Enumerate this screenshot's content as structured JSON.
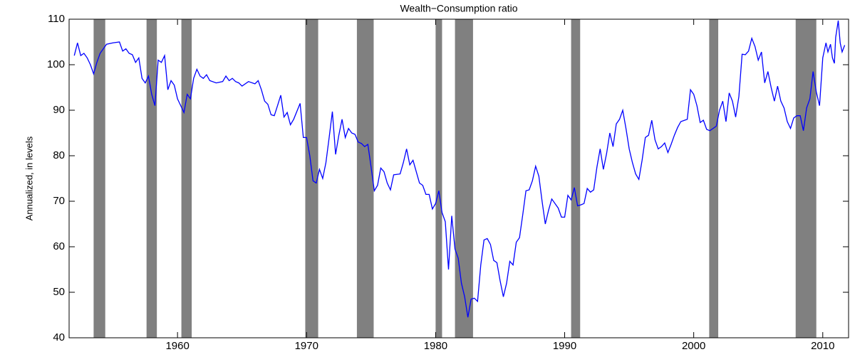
{
  "chart_data": {
    "type": "line",
    "title": "Wealth−Consumption ratio",
    "ylabel": "Annualized, in levels",
    "xlim": [
      1951.6,
      2012.0
    ],
    "ylim": [
      40,
      110
    ],
    "xticks": [
      1960,
      1970,
      1980,
      1990,
      2000,
      2010
    ],
    "yticks": [
      40,
      50,
      60,
      70,
      80,
      90,
      100,
      110
    ],
    "recession_color": "#808080",
    "recessions": [
      [
        1953.5,
        1954.4
      ],
      [
        1957.6,
        1958.4
      ],
      [
        1960.3,
        1961.1
      ],
      [
        1969.9,
        1970.9
      ],
      [
        1973.9,
        1975.2
      ],
      [
        1980.0,
        1980.5
      ],
      [
        1981.5,
        1982.9
      ],
      [
        1990.5,
        1991.2
      ],
      [
        2001.2,
        2001.9
      ],
      [
        2007.9,
        2009.5
      ]
    ],
    "series": [
      {
        "color": "#0000ff",
        "x": [
          1952.0,
          1952.25,
          1952.5,
          1952.75,
          1953.0,
          1953.25,
          1953.5,
          1953.75,
          1954.0,
          1954.5,
          1955.0,
          1955.5,
          1955.75,
          1956.0,
          1956.25,
          1956.5,
          1956.75,
          1957.0,
          1957.25,
          1957.5,
          1957.75,
          1958.0,
          1958.25,
          1958.5,
          1958.75,
          1959.0,
          1959.25,
          1959.5,
          1959.75,
          1960.0,
          1960.25,
          1960.5,
          1960.75,
          1961.0,
          1961.25,
          1961.5,
          1961.75,
          1962.0,
          1962.25,
          1962.5,
          1963.0,
          1963.5,
          1963.75,
          1964.0,
          1964.25,
          1964.5,
          1964.75,
          1965.0,
          1965.5,
          1966.0,
          1966.25,
          1966.5,
          1966.75,
          1967.0,
          1967.25,
          1967.5,
          1967.75,
          1968.0,
          1968.25,
          1968.5,
          1968.75,
          1969.0,
          1969.5,
          1969.75,
          1970.0,
          1970.25,
          1970.5,
          1970.75,
          1971.0,
          1971.25,
          1971.5,
          1971.75,
          1972.0,
          1972.25,
          1972.5,
          1972.75,
          1973.0,
          1973.25,
          1973.5,
          1973.75,
          1974.0,
          1974.25,
          1974.5,
          1974.75,
          1975.0,
          1975.25,
          1975.5,
          1975.75,
          1976.0,
          1976.25,
          1976.5,
          1976.75,
          1977.25,
          1977.5,
          1977.75,
          1978.0,
          1978.25,
          1978.5,
          1978.75,
          1979.0,
          1979.25,
          1979.5,
          1979.75,
          1980.0,
          1980.25,
          1980.5,
          1980.75,
          1981.0,
          1981.25,
          1981.5,
          1981.75,
          1982.0,
          1982.25,
          1982.5,
          1982.75,
          1983.0,
          1983.25,
          1983.5,
          1983.75,
          1984.0,
          1984.25,
          1984.5,
          1984.75,
          1985.0,
          1985.25,
          1985.5,
          1985.75,
          1986.0,
          1986.25,
          1986.5,
          1986.75,
          1987.0,
          1987.25,
          1987.5,
          1987.75,
          1988.0,
          1988.25,
          1988.5,
          1988.75,
          1989.0,
          1989.5,
          1989.75,
          1990.0,
          1990.25,
          1990.5,
          1990.75,
          1991.0,
          1991.25,
          1991.5,
          1991.75,
          1992.0,
          1992.25,
          1992.5,
          1992.75,
          1993.0,
          1993.25,
          1993.5,
          1993.75,
          1994.0,
          1994.25,
          1994.5,
          1994.75,
          1995.0,
          1995.25,
          1995.5,
          1995.75,
          1996.0,
          1996.25,
          1996.5,
          1996.75,
          1997.0,
          1997.25,
          1997.5,
          1997.75,
          1998.0,
          1998.25,
          1998.5,
          1998.75,
          1999.0,
          1999.5,
          1999.75,
          2000.0,
          2000.25,
          2000.5,
          2000.75,
          2001.0,
          2001.25,
          2001.5,
          2001.75,
          2002.0,
          2002.25,
          2002.5,
          2002.75,
          2003.0,
          2003.25,
          2003.5,
          2003.75,
          2004.0,
          2004.25,
          2004.5,
          2004.75,
          2005.0,
          2005.25,
          2005.5,
          2005.75,
          2006.0,
          2006.25,
          2006.5,
          2006.75,
          2007.0,
          2007.25,
          2007.5,
          2007.75,
          2008.0,
          2008.25,
          2008.5,
          2008.75,
          2009.0,
          2009.25,
          2009.5,
          2009.75,
          2010.0,
          2010.25,
          2010.4,
          2010.6,
          2010.75,
          2010.9,
          2011.0,
          2011.2,
          2011.35,
          2011.5,
          2011.7
        ],
        "values": [
          102,
          104.8,
          102,
          102.5,
          101.5,
          100,
          98,
          100.5,
          102.5,
          104.5,
          104.8,
          105,
          103,
          103.5,
          102.5,
          102.2,
          100.5,
          101.5,
          97,
          96,
          97.5,
          93.5,
          91,
          101,
          100.5,
          102,
          94.5,
          96.5,
          95.5,
          92.5,
          91,
          89.5,
          93.5,
          92.5,
          97,
          99,
          97.5,
          97,
          97.8,
          96.5,
          96,
          96.3,
          97.5,
          96.5,
          97,
          96.3,
          96,
          95.3,
          96.3,
          95.8,
          96.5,
          94.5,
          92,
          91.3,
          89,
          88.8,
          91,
          93.3,
          88.5,
          89.5,
          86.8,
          88,
          91.5,
          84,
          84,
          80,
          74.5,
          74,
          77,
          75,
          78.5,
          84,
          89.7,
          80.3,
          84.5,
          88,
          84,
          86,
          85,
          84.7,
          83,
          82.7,
          82,
          82.5,
          77.5,
          72.3,
          73.5,
          77.3,
          76.5,
          74,
          72.5,
          75.8,
          76,
          78.5,
          81.5,
          78,
          79,
          76.5,
          74,
          73.5,
          71.5,
          71.5,
          68.3,
          69.5,
          72.3,
          67.5,
          65.5,
          55,
          66.8,
          59.5,
          57.5,
          52,
          49,
          44.5,
          48.5,
          48.7,
          48,
          56,
          61.5,
          61.8,
          60.5,
          57,
          56.5,
          52.5,
          49,
          52,
          56.8,
          56,
          61,
          62,
          67,
          72.3,
          72.5,
          74.5,
          77.7,
          75.5,
          70,
          65,
          68,
          70.5,
          68.5,
          66.5,
          66.5,
          71.3,
          70.3,
          73,
          69,
          69.2,
          69.5,
          72.8,
          72,
          72.5,
          77.5,
          81.5,
          77,
          80.5,
          85,
          82,
          87,
          88,
          90,
          86,
          81.5,
          78.5,
          76,
          74.8,
          79,
          84,
          84.5,
          87.8,
          83.5,
          81.5,
          82,
          82.8,
          80.7,
          82.5,
          84.5,
          86.2,
          87.5,
          88,
          94.5,
          93.5,
          91,
          87.3,
          87.8,
          85.8,
          85.5,
          86,
          86.5,
          90,
          92,
          87.5,
          93.8,
          92,
          88.5,
          93,
          102.3,
          102.2,
          103,
          105.8,
          104,
          101,
          102.8,
          96,
          98.5,
          95,
          92,
          95.3,
          92,
          90.5,
          87.5,
          86,
          88.3,
          88.8,
          88.8,
          85.5,
          90.5,
          92.5,
          98.5,
          94,
          91,
          101.5,
          104.8,
          102.8,
          104.5,
          101.5,
          100.3,
          106,
          109.7,
          104.8,
          102.8,
          104.3
        ]
      }
    ]
  }
}
